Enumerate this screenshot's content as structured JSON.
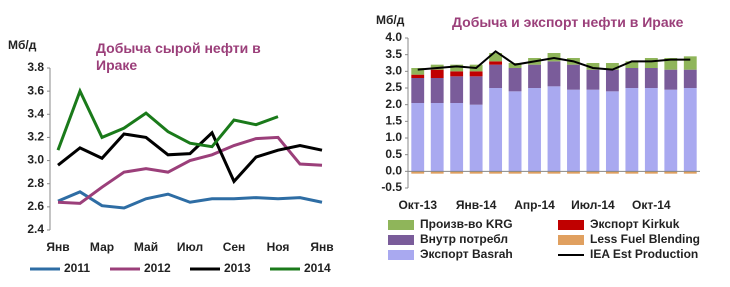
{
  "chart_data": [
    {
      "type": "line",
      "title": "Добыча сырой нефти в Ираке",
      "y_label": "Мб/д",
      "categories": [
        "Янв",
        null,
        "Мар",
        null,
        "Май",
        null,
        "Июл",
        null,
        "Сен",
        null,
        "Ноя",
        null,
        "Янв"
      ],
      "ylim": [
        2.4,
        3.8
      ],
      "yticks": [
        2.4,
        2.6,
        2.8,
        {
          "value": 3,
          "label": "3.0"
        },
        3.2,
        3.4,
        3.6,
        3.8
      ],
      "legend": "bottom",
      "series": [
        {
          "name": "2011",
          "color": "#2e6da4",
          "values": [
            2.65,
            2.73,
            2.61,
            2.59,
            2.67,
            2.71,
            2.64,
            2.67,
            2.67,
            2.68,
            2.67,
            2.68,
            2.64
          ]
        },
        {
          "name": "2012",
          "color": "#9b3f7a",
          "values": [
            2.64,
            2.63,
            2.77,
            2.9,
            2.93,
            2.9,
            3.0,
            3.05,
            3.13,
            3.19,
            3.2,
            2.97,
            2.96
          ]
        },
        {
          "name": "2013",
          "color": "#000000",
          "values": [
            2.96,
            3.11,
            3.02,
            3.23,
            3.2,
            3.05,
            3.06,
            3.24,
            2.82,
            3.03,
            3.09,
            3.13,
            3.09
          ]
        },
        {
          "name": "2014",
          "color": "#1a7a1a",
          "values": [
            3.09,
            3.6,
            3.2,
            3.28,
            3.41,
            3.25,
            3.15,
            3.12,
            3.35,
            3.31,
            3.38,
            null,
            null
          ]
        }
      ]
    },
    {
      "type": "stacked_bar",
      "title": "Добыча и экспорт нефти в Ираке",
      "y_label": "Мб/д",
      "categories": [
        "Окт-13",
        null,
        null,
        "Янв-14",
        null,
        null,
        "Апр-14",
        null,
        null,
        "Июл-14",
        null,
        null,
        "Окт-14",
        null,
        null
      ],
      "ylim": [
        -0.5,
        4
      ],
      "yticks": [
        -0.5,
        {
          "value": 0,
          "label": "0.0"
        },
        0.5,
        {
          "value": 1,
          "label": "1.0"
        },
        1.5,
        {
          "value": 2,
          "label": "2.0"
        },
        2.5,
        {
          "value": 3,
          "label": "3.0"
        },
        3.5,
        {
          "value": 4,
          "label": "4.0"
        }
      ],
      "legend": "bottom",
      "series": [
        {
          "name": "Произв-во KRG",
          "color": "#8fb55a",
          "values": [
            0.2,
            0.15,
            0.2,
            0.2,
            0.25,
            0.15,
            0.2,
            0.25,
            0.2,
            0.2,
            0.2,
            0.2,
            0.3,
            0.35,
            0.4
          ]
        },
        {
          "name": "Экспорт Kirkuk",
          "color": "#c00000",
          "values": [
            0.1,
            0.25,
            0.15,
            0.15,
            0.1,
            0,
            0,
            0,
            0,
            0,
            0,
            0,
            0,
            0,
            0
          ]
        },
        {
          "name": "Внутр потребл",
          "color": "#7a5c9a",
          "values": [
            0.75,
            0.75,
            0.8,
            0.85,
            0.7,
            0.7,
            0.7,
            0.75,
            0.75,
            0.6,
            0.65,
            0.6,
            0.6,
            0.6,
            0.55
          ]
        },
        {
          "name": "Less Fuel Blending",
          "color": "#e0a060",
          "values": [
            -0.07,
            -0.07,
            -0.07,
            -0.07,
            -0.07,
            -0.07,
            -0.07,
            -0.07,
            -0.07,
            -0.07,
            -0.07,
            -0.07,
            -0.07,
            -0.07,
            -0.07
          ]
        },
        {
          "name": "Экспорт Basrah",
          "color": "#a9a9f0",
          "values": [
            2.05,
            2.05,
            2.05,
            2.0,
            2.5,
            2.4,
            2.5,
            2.55,
            2.45,
            2.45,
            2.4,
            2.5,
            2.5,
            2.45,
            2.5
          ]
        },
        {
          "name": "IEA Est Production",
          "color": "#000000",
          "type": "line",
          "values": [
            3.05,
            3.1,
            3.15,
            3.1,
            3.6,
            3.2,
            3.3,
            3.4,
            3.3,
            3.1,
            3.05,
            3.3,
            3.3,
            3.35,
            3.35
          ]
        }
      ]
    }
  ]
}
